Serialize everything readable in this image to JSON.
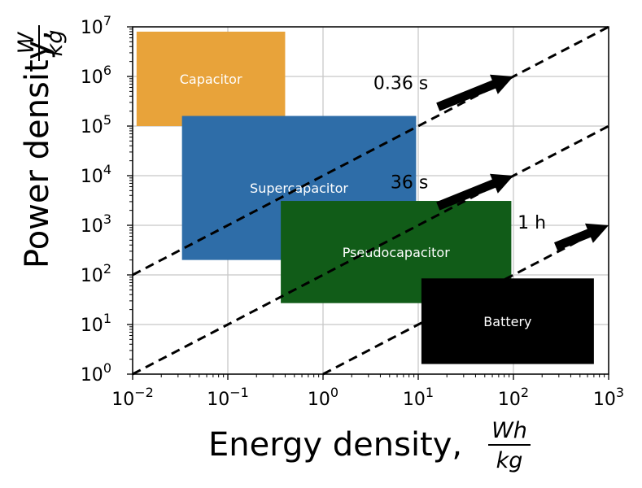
{
  "chart_data": {
    "type": "area",
    "xlabel": "Energy density,",
    "xlabel_unit": {
      "numerator": "Wh",
      "denominator": "kg"
    },
    "ylabel": "Power density,",
    "ylabel_unit": {
      "numerator": "W",
      "denominator": "kg"
    },
    "x_scale": "log",
    "y_scale": "log",
    "xlim": [
      0.01,
      1000
    ],
    "ylim": [
      1,
      10000000
    ],
    "grid": true,
    "x_ticks": [
      {
        "value": 0.01,
        "base": "10",
        "exp": "−2"
      },
      {
        "value": 0.1,
        "base": "10",
        "exp": "−1"
      },
      {
        "value": 1,
        "base": "10",
        "exp": "0"
      },
      {
        "value": 10,
        "base": "10",
        "exp": "1"
      },
      {
        "value": 100,
        "base": "10",
        "exp": "2"
      },
      {
        "value": 1000,
        "base": "10",
        "exp": "3"
      }
    ],
    "y_ticks": [
      {
        "value": 1,
        "base": "10",
        "exp": "0"
      },
      {
        "value": 10,
        "base": "10",
        "exp": "1"
      },
      {
        "value": 100,
        "base": "10",
        "exp": "2"
      },
      {
        "value": 1000,
        "base": "10",
        "exp": "3"
      },
      {
        "value": 10000,
        "base": "10",
        "exp": "4"
      },
      {
        "value": 100000,
        "base": "10",
        "exp": "5"
      },
      {
        "value": 1000000,
        "base": "10",
        "exp": "6"
      },
      {
        "value": 10000000,
        "base": "10",
        "exp": "7"
      }
    ],
    "regions": [
      {
        "name": "Capacitor",
        "x_range": [
          0.011,
          0.4
        ],
        "y_range": [
          100000,
          8000000
        ],
        "color": "#e8a33a",
        "text_color": "#ffffff"
      },
      {
        "name": "Supercapacitor",
        "x_range": [
          0.033,
          9.5
        ],
        "y_range": [
          200,
          160000
        ],
        "color": "#2e6da8",
        "text_color": "#ffffff"
      },
      {
        "name": "Pseudocapacitor",
        "x_range": [
          0.36,
          95
        ],
        "y_range": [
          27,
          3100
        ],
        "color": "#115c18",
        "text_color": "#ffffff"
      },
      {
        "name": "Battery",
        "x_range": [
          10.8,
          700
        ],
        "y_range": [
          1.6,
          85
        ],
        "color": "#000000",
        "text_color": "#ffffff"
      }
    ],
    "time_lines": [
      {
        "label": "0.36 s",
        "time_hours": 0.0001,
        "arrow_to": [
          100,
          1000000
        ]
      },
      {
        "label": "36 s",
        "time_hours": 0.01,
        "arrow_to": [
          100,
          10000
        ]
      },
      {
        "label": "1 h",
        "time_hours": 1,
        "arrow_to": [
          1000,
          1000
        ]
      }
    ],
    "colors": {
      "grid": "#c8c8c8",
      "line": "#000000",
      "arrow": "#000000"
    }
  }
}
